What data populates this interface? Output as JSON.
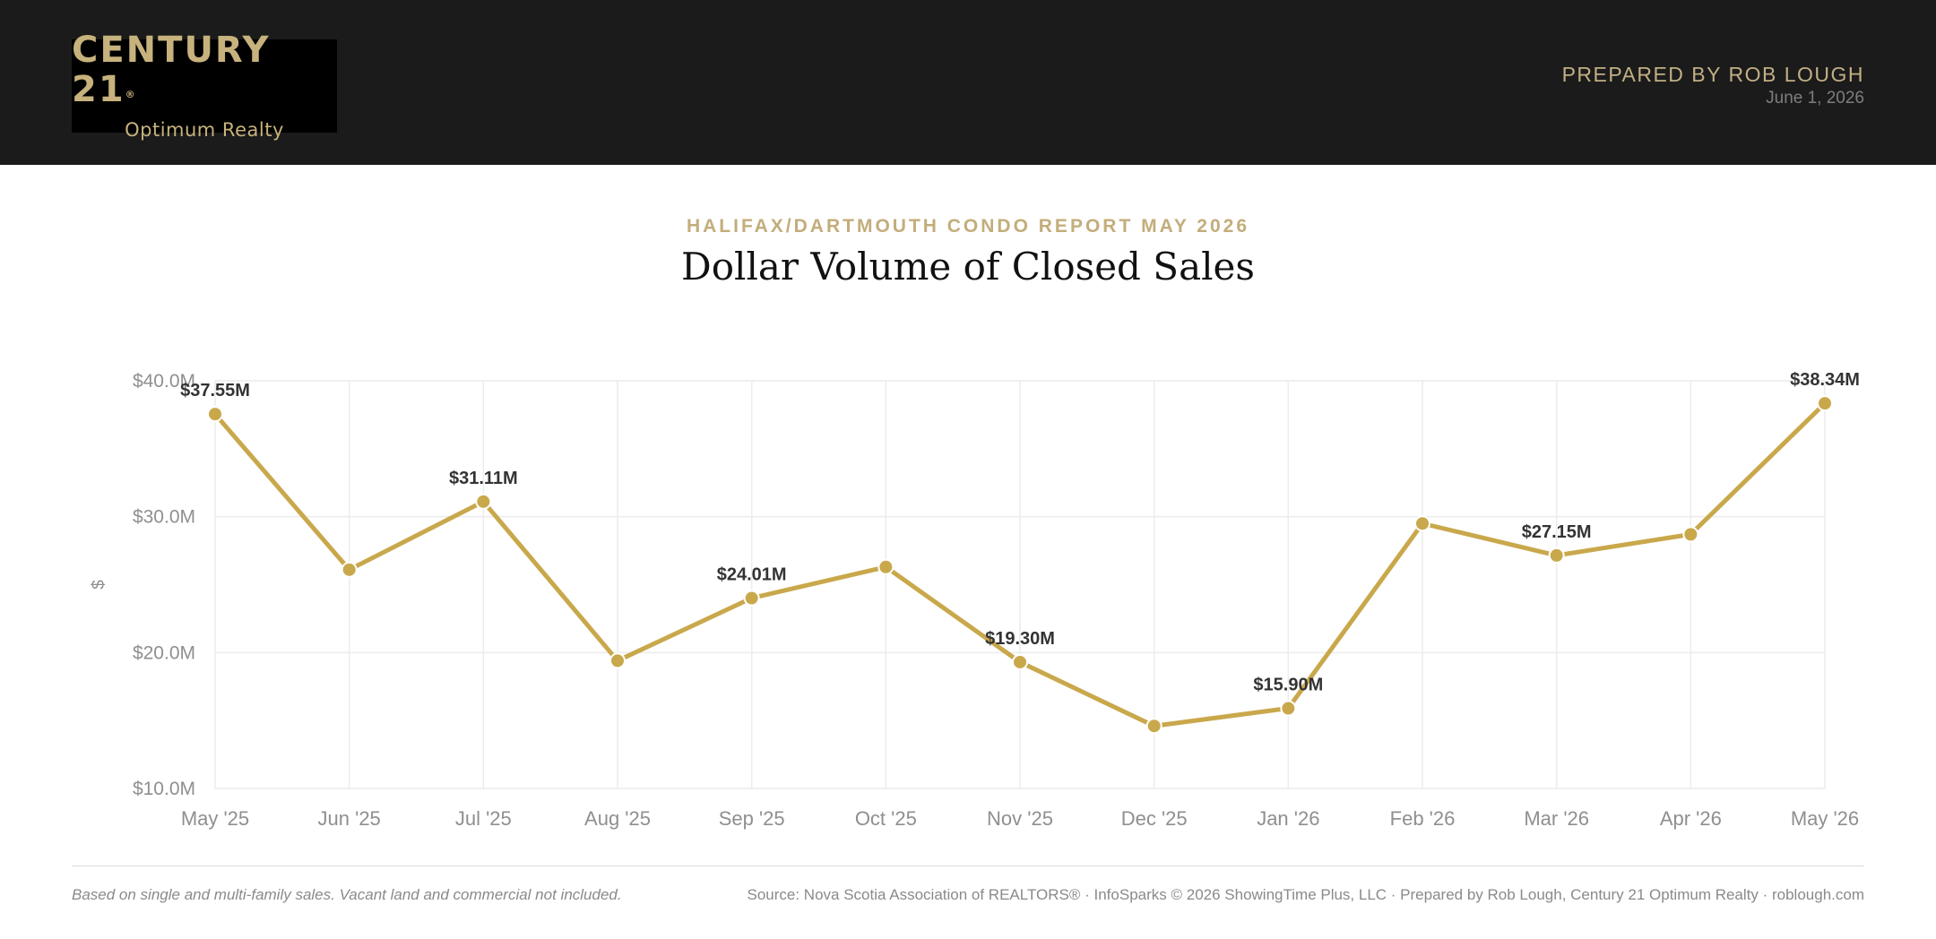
{
  "header": {
    "logo_main": "CENTURY 21",
    "logo_mark": "®",
    "logo_sub": "Optimum Realty",
    "prepared_by": "PREPARED BY ROB LOUGH",
    "date": "June 1, 2026"
  },
  "report": {
    "eyebrow": "HALIFAX/DARTMOUTH CONDO REPORT MAY 2026",
    "title": "Dollar Volume of Closed Sales"
  },
  "chart_data": {
    "type": "line",
    "title": "Dollar Volume of Closed Sales",
    "xlabel": "",
    "ylabel": "$",
    "ylim": [
      10,
      40
    ],
    "y_unit": "$M",
    "y_ticks": [
      {
        "value": 10,
        "label": "$10.0M"
      },
      {
        "value": 20,
        "label": "$20.0M"
      },
      {
        "value": 30,
        "label": "$30.0M"
      },
      {
        "value": 40,
        "label": "$40.0M"
      }
    ],
    "grid": true,
    "line_color": "#c9a84c",
    "categories": [
      "May '25",
      "Jun '25",
      "Jul '25",
      "Aug '25",
      "Sep '25",
      "Oct '25",
      "Nov '25",
      "Dec '25",
      "Jan '26",
      "Feb '26",
      "Mar '26",
      "Apr '26",
      "May '26"
    ],
    "values": [
      37.55,
      26.1,
      31.11,
      19.4,
      24.01,
      26.3,
      19.3,
      14.6,
      15.9,
      29.5,
      27.15,
      28.7,
      38.34
    ],
    "data_labels": [
      "$37.55M",
      "",
      "$31.11M",
      "",
      "$24.01M",
      "",
      "$19.30M",
      "",
      "$15.90M",
      "",
      "$27.15M",
      "",
      "$38.34M"
    ]
  },
  "footer": {
    "note": "Based on single and multi-family sales. Vacant land and commercial not included.",
    "source": "Source: Nova Scotia Association of REALTORS® · InfoSparks © 2026 ShowingTime Plus, LLC · Prepared by Rob Lough, Century 21 Optimum Realty · roblough.com"
  }
}
